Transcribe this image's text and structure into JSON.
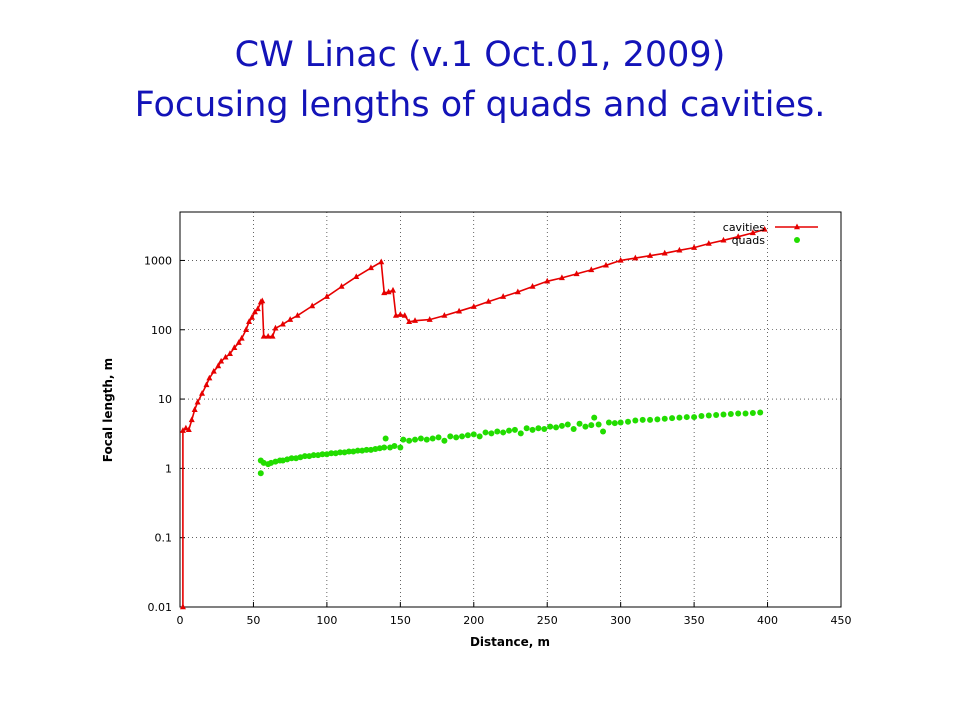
{
  "slide": {
    "title_line1": "CW Linac (v.1 Oct.01, 2009)",
    "title_line2": "Focusing lengths of quads and cavities."
  },
  "chart_data": {
    "type": "scatter",
    "title": "",
    "xlabel": "Distance, m",
    "ylabel": "Focal length, m",
    "xlim": [
      0,
      450
    ],
    "ylim": [
      0.01,
      5000
    ],
    "yscale": "log",
    "grid": true,
    "legend_position": "top-right",
    "x_ticks": [
      "0",
      "50",
      "100",
      "150",
      "200",
      "250",
      "300",
      "350",
      "400",
      "450"
    ],
    "y_ticks": [
      "0.01",
      "0.1",
      "1",
      "10",
      "100",
      "1000"
    ],
    "colors": {
      "cavities": "#e60000",
      "quads": "#22dd00",
      "grid": "#000000"
    },
    "series": [
      {
        "name": "cavities",
        "marker": "triangle",
        "line": true,
        "points": [
          [
            2,
            0.01
          ],
          [
            2,
            3.5
          ],
          [
            4,
            3.8
          ],
          [
            6,
            3.6
          ],
          [
            8,
            5
          ],
          [
            10,
            7
          ],
          [
            12,
            9
          ],
          [
            15,
            12
          ],
          [
            18,
            16
          ],
          [
            20,
            20
          ],
          [
            23,
            25
          ],
          [
            26,
            30
          ],
          [
            28,
            35
          ],
          [
            31,
            40
          ],
          [
            34,
            45
          ],
          [
            37,
            55
          ],
          [
            40,
            65
          ],
          [
            42,
            75
          ],
          [
            45,
            100
          ],
          [
            47,
            130
          ],
          [
            49,
            150
          ],
          [
            51,
            180
          ],
          [
            53,
            200
          ],
          [
            55,
            250
          ],
          [
            56,
            260
          ],
          [
            57,
            80
          ],
          [
            60,
            80
          ],
          [
            63,
            80
          ],
          [
            65,
            105
          ],
          [
            70,
            120
          ],
          [
            75,
            140
          ],
          [
            80,
            160
          ],
          [
            90,
            220
          ],
          [
            100,
            300
          ],
          [
            110,
            420
          ],
          [
            120,
            580
          ],
          [
            130,
            780
          ],
          [
            137,
            950
          ],
          [
            139,
            340
          ],
          [
            142,
            350
          ],
          [
            145,
            370
          ],
          [
            147,
            160
          ],
          [
            150,
            165
          ],
          [
            153,
            160
          ],
          [
            156,
            130
          ],
          [
            160,
            135
          ],
          [
            170,
            140
          ],
          [
            180,
            160
          ],
          [
            190,
            185
          ],
          [
            200,
            215
          ],
          [
            210,
            255
          ],
          [
            220,
            300
          ],
          [
            230,
            350
          ],
          [
            240,
            420
          ],
          [
            250,
            500
          ],
          [
            260,
            560
          ],
          [
            270,
            640
          ],
          [
            280,
            730
          ],
          [
            290,
            850
          ],
          [
            300,
            1000
          ],
          [
            310,
            1080
          ],
          [
            320,
            1170
          ],
          [
            330,
            1270
          ],
          [
            340,
            1400
          ],
          [
            350,
            1530
          ],
          [
            360,
            1750
          ],
          [
            370,
            1950
          ],
          [
            380,
            2200
          ],
          [
            390,
            2500
          ],
          [
            398,
            2800
          ]
        ]
      },
      {
        "name": "quads",
        "marker": "circle",
        "line": false,
        "points": [
          [
            55,
            0.85
          ],
          [
            55,
            1.3
          ],
          [
            57,
            1.2
          ],
          [
            60,
            1.15
          ],
          [
            62,
            1.2
          ],
          [
            65,
            1.25
          ],
          [
            68,
            1.3
          ],
          [
            70,
            1.3
          ],
          [
            73,
            1.35
          ],
          [
            76,
            1.4
          ],
          [
            79,
            1.4
          ],
          [
            82,
            1.45
          ],
          [
            85,
            1.5
          ],
          [
            88,
            1.5
          ],
          [
            91,
            1.55
          ],
          [
            94,
            1.55
          ],
          [
            97,
            1.6
          ],
          [
            100,
            1.6
          ],
          [
            103,
            1.65
          ],
          [
            106,
            1.65
          ],
          [
            109,
            1.7
          ],
          [
            112,
            1.7
          ],
          [
            115,
            1.75
          ],
          [
            118,
            1.75
          ],
          [
            121,
            1.8
          ],
          [
            124,
            1.8
          ],
          [
            127,
            1.85
          ],
          [
            130,
            1.85
          ],
          [
            133,
            1.9
          ],
          [
            136,
            1.95
          ],
          [
            139,
            2.0
          ],
          [
            140,
            2.7
          ],
          [
            143,
            2.0
          ],
          [
            146,
            2.1
          ],
          [
            150,
            2.0
          ],
          [
            152,
            2.6
          ],
          [
            156,
            2.5
          ],
          [
            160,
            2.6
          ],
          [
            164,
            2.7
          ],
          [
            168,
            2.6
          ],
          [
            172,
            2.7
          ],
          [
            176,
            2.8
          ],
          [
            180,
            2.5
          ],
          [
            184,
            2.9
          ],
          [
            188,
            2.8
          ],
          [
            192,
            2.9
          ],
          [
            196,
            3.0
          ],
          [
            200,
            3.1
          ],
          [
            204,
            2.9
          ],
          [
            208,
            3.3
          ],
          [
            212,
            3.2
          ],
          [
            216,
            3.4
          ],
          [
            220,
            3.3
          ],
          [
            224,
            3.5
          ],
          [
            228,
            3.6
          ],
          [
            232,
            3.2
          ],
          [
            236,
            3.8
          ],
          [
            240,
            3.6
          ],
          [
            244,
            3.8
          ],
          [
            248,
            3.7
          ],
          [
            252,
            4.0
          ],
          [
            256,
            3.9
          ],
          [
            260,
            4.1
          ],
          [
            264,
            4.3
          ],
          [
            268,
            3.7
          ],
          [
            272,
            4.4
          ],
          [
            276,
            4.0
          ],
          [
            280,
            4.2
          ],
          [
            282,
            5.4
          ],
          [
            285,
            4.3
          ],
          [
            288,
            3.4
          ],
          [
            292,
            4.6
          ],
          [
            296,
            4.5
          ],
          [
            300,
            4.6
          ],
          [
            305,
            4.7
          ],
          [
            310,
            4.9
          ],
          [
            315,
            5.0
          ],
          [
            320,
            5.0
          ],
          [
            325,
            5.1
          ],
          [
            330,
            5.2
          ],
          [
            335,
            5.3
          ],
          [
            340,
            5.4
          ],
          [
            345,
            5.5
          ],
          [
            350,
            5.5
          ],
          [
            355,
            5.7
          ],
          [
            360,
            5.8
          ],
          [
            365,
            5.9
          ],
          [
            370,
            6.0
          ],
          [
            375,
            6.1
          ],
          [
            380,
            6.2
          ],
          [
            385,
            6.2
          ],
          [
            390,
            6.3
          ],
          [
            395,
            6.4
          ]
        ]
      }
    ]
  }
}
